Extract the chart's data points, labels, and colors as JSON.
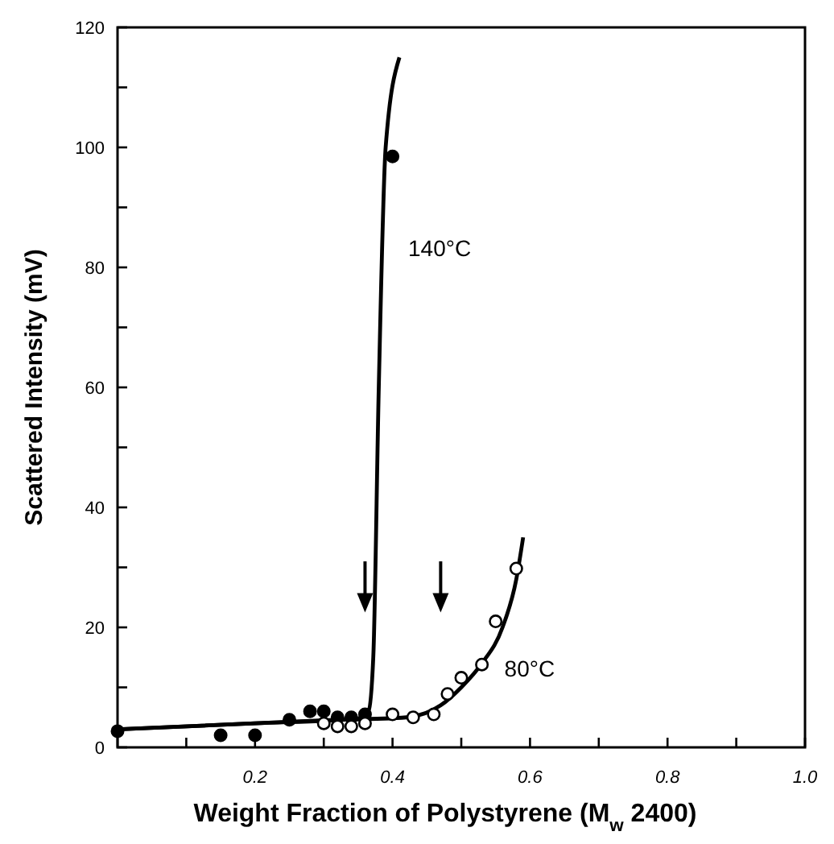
{
  "chart_data": {
    "type": "scatter",
    "xlabel": "Weight Fraction of Polystyrene  (M$_{w}$ 2400)",
    "ylabel": "Scattered Intensity (mV)",
    "xlim": [
      0,
      1
    ],
    "ylim": [
      0,
      120
    ],
    "xticks": [
      {
        "value": 0,
        "label": null
      },
      {
        "value": 0.1,
        "label": null
      },
      0.2,
      {
        "value": 0.3,
        "label": null
      },
      0.4,
      {
        "value": 0.5,
        "label": null
      },
      0.6,
      {
        "value": 0.7,
        "label": null
      },
      0.8,
      {
        "value": 0.9,
        "label": null
      },
      {
        "value": 1,
        "label": "1.0"
      }
    ],
    "yticks": [
      0,
      {
        "value": 10,
        "label": null
      },
      20,
      {
        "value": 30,
        "label": null
      },
      40,
      {
        "value": 50,
        "label": null
      },
      60,
      {
        "value": 70,
        "label": null
      },
      80,
      {
        "value": 90,
        "label": null
      },
      100,
      {
        "value": 110,
        "label": null
      },
      120
    ],
    "grid": false,
    "marker": "circle",
    "series": [
      {
        "color": "#000000",
        "x": [
          0,
          0.15,
          0.2,
          0.25,
          0.28,
          0.3,
          0.32,
          0.34,
          0.36,
          0.4
        ],
        "values": [
          2.7,
          2,
          2,
          4.6,
          6,
          6,
          5,
          5,
          5.5,
          98.5
        ]
      },
      {
        "color": "#ffffff",
        "x": [
          0.3,
          0.32,
          0.34,
          0.36,
          0.4,
          0.43,
          0.46,
          0.48,
          0.5,
          0.53,
          0.55,
          0.58
        ],
        "values": [
          4,
          3.5,
          3.5,
          4,
          5.5,
          5,
          5.5,
          8.9,
          11.6,
          13.8,
          21,
          29.8
        ]
      },
      {
        "type": "line",
        "color": "#000000",
        "marker": "none",
        "x": [
          0,
          0.2,
          0.35,
          0.365,
          0.372,
          0.38,
          0.39,
          0.41
        ],
        "values": [
          3,
          4,
          4.8,
          6,
          15,
          60,
          100,
          115
        ]
      },
      {
        "type": "line",
        "color": "#000000",
        "marker": "none",
        "x": [
          0,
          0.3,
          0.42,
          0.47,
          0.5,
          0.53,
          0.56,
          0.58,
          0.59
        ],
        "values": [
          3,
          4.5,
          5,
          7,
          10,
          14,
          20,
          28,
          35
        ]
      }
    ],
    "annotations": [
      {
        "text": "140°C",
        "x": 0.39,
        "y": 84
      },
      {
        "text": "80°C",
        "x": 0.53,
        "y": 14
      }
    ]
  }
}
